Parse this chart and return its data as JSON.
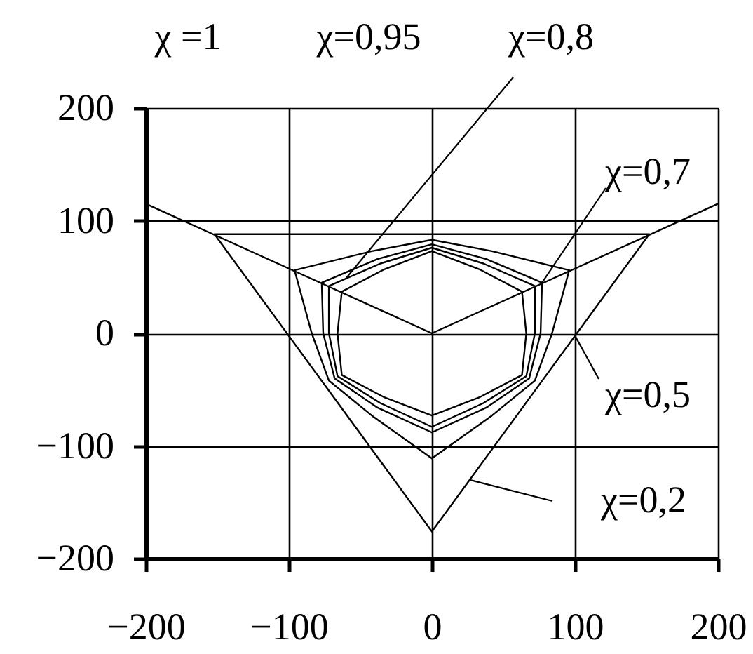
{
  "chart_data": {
    "type": "line",
    "xlim": [
      -200,
      200
    ],
    "ylim": [
      -200,
      200
    ],
    "xticks": [
      -200,
      -100,
      0,
      100,
      200
    ],
    "yticks": [
      -200,
      -100,
      0,
      100,
      200
    ],
    "grid": true,
    "series": [
      {
        "color": "#000000",
        "x": [
          -200,
          0,
          200
        ],
        "values": [
          115,
          0,
          115
        ]
      },
      {
        "color": "#000000",
        "x": [
          0,
          -152,
          0,
          null,
          0,
          152,
          0
        ],
        "values": [
          88,
          88,
          -176,
          null,
          88,
          88,
          -176
        ]
      },
      {
        "color": "#000000",
        "x": [
          0,
          -42,
          -96,
          -84,
          -72,
          -42,
          0,
          null,
          0,
          42,
          96,
          84,
          72,
          42,
          0
        ],
        "values": [
          83,
          73,
          56,
          0,
          -42,
          -73,
          -111,
          null,
          83,
          73,
          56,
          0,
          -42,
          -73,
          -111
        ]
      },
      {
        "color": "#000000",
        "x": [
          0,
          -38,
          -77,
          -76,
          -68,
          -38,
          0,
          null,
          0,
          38,
          77,
          76,
          68,
          38,
          0
        ],
        "values": [
          79,
          66,
          45,
          0,
          -40,
          -66,
          -88,
          null,
          79,
          66,
          45,
          0,
          -40,
          -66,
          -88
        ]
      },
      {
        "color": "#000000",
        "x": [
          0,
          -36,
          -72,
          -72,
          -66,
          -36,
          0,
          null,
          0,
          36,
          72,
          72,
          66,
          36,
          0
        ],
        "values": [
          76,
          62,
          42,
          0,
          -38,
          -62,
          -83,
          null,
          76,
          62,
          42,
          0,
          -38,
          -62,
          -83
        ]
      },
      {
        "color": "#000000",
        "x": [
          0,
          -33,
          -63,
          -66,
          -63,
          -33,
          0,
          null,
          0,
          33,
          63,
          66,
          63,
          33,
          0
        ],
        "values": [
          73,
          57,
          37,
          0,
          -37,
          -57,
          -73,
          null,
          73,
          57,
          37,
          0,
          -37,
          -57,
          -73
        ]
      }
    ],
    "annotations": [
      "χ =1",
      "χ=0,95",
      {
        "text": "χ=0,8",
        "x": -60,
        "y": 49
      },
      {
        "text": "χ=0,7",
        "x": 77,
        "y": 45
      },
      {
        "text": "χ=0,5",
        "x": 100,
        "y": -2
      },
      {
        "text": "χ=0,2",
        "x": 26,
        "y": -130
      }
    ]
  }
}
